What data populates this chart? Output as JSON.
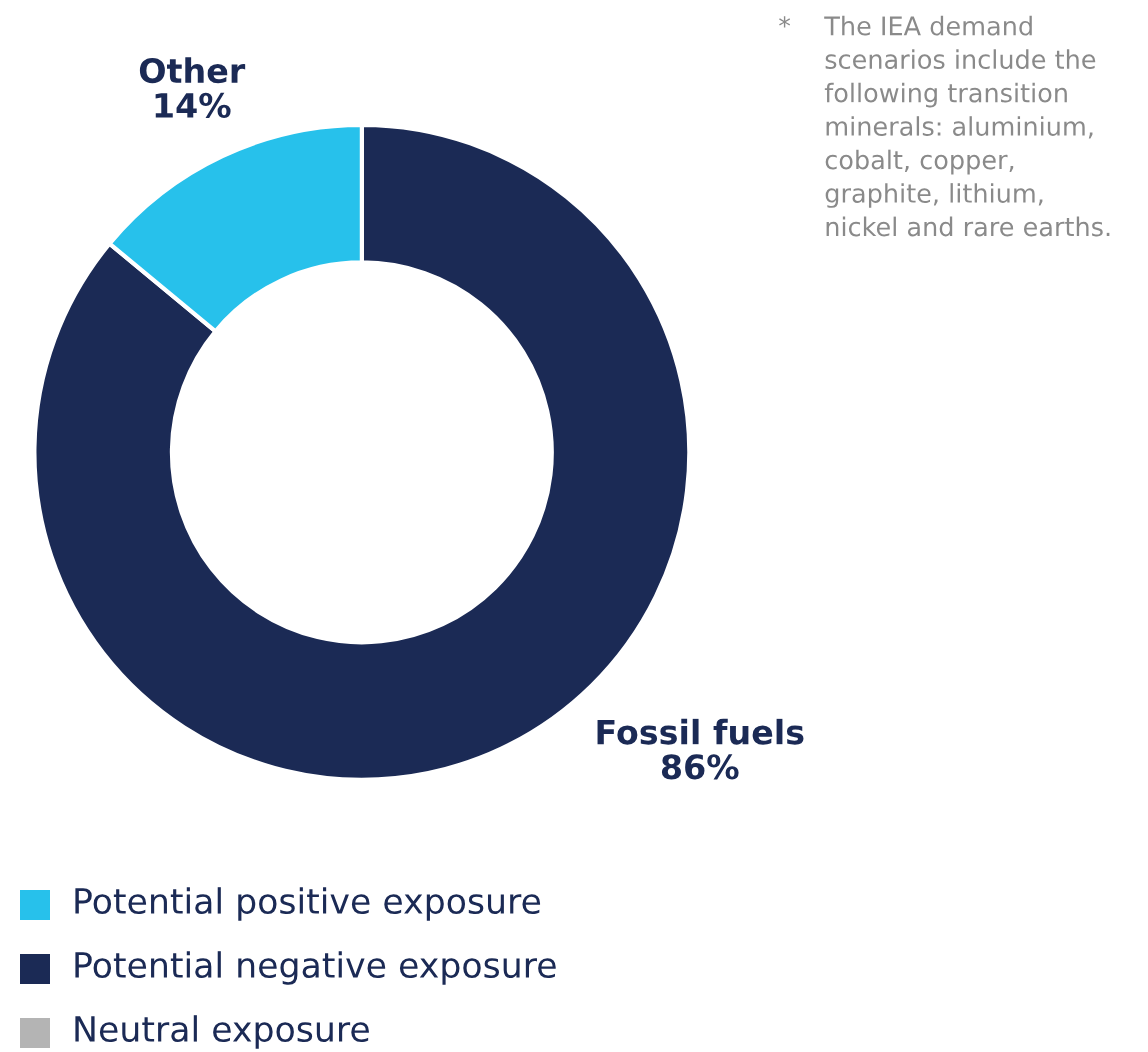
{
  "chart_data": {
    "type": "donut",
    "categories": [
      "Fossil fuels",
      "Other"
    ],
    "values": [
      86,
      14
    ],
    "colors": [
      "#1b2a55",
      "#27c1eb"
    ],
    "value_labels": [
      "86%",
      "14%"
    ],
    "annotations": [
      "*",
      "The IEA demand\nscenarios include the\nfollowing transition\nminerals: aluminium,\ncobalt, copper,\ngraphite, lithium,\nnickel and rare earths.",
      "Potential positive exposure",
      "Potential negative exposure",
      "Neutral exposure"
    ]
  }
}
